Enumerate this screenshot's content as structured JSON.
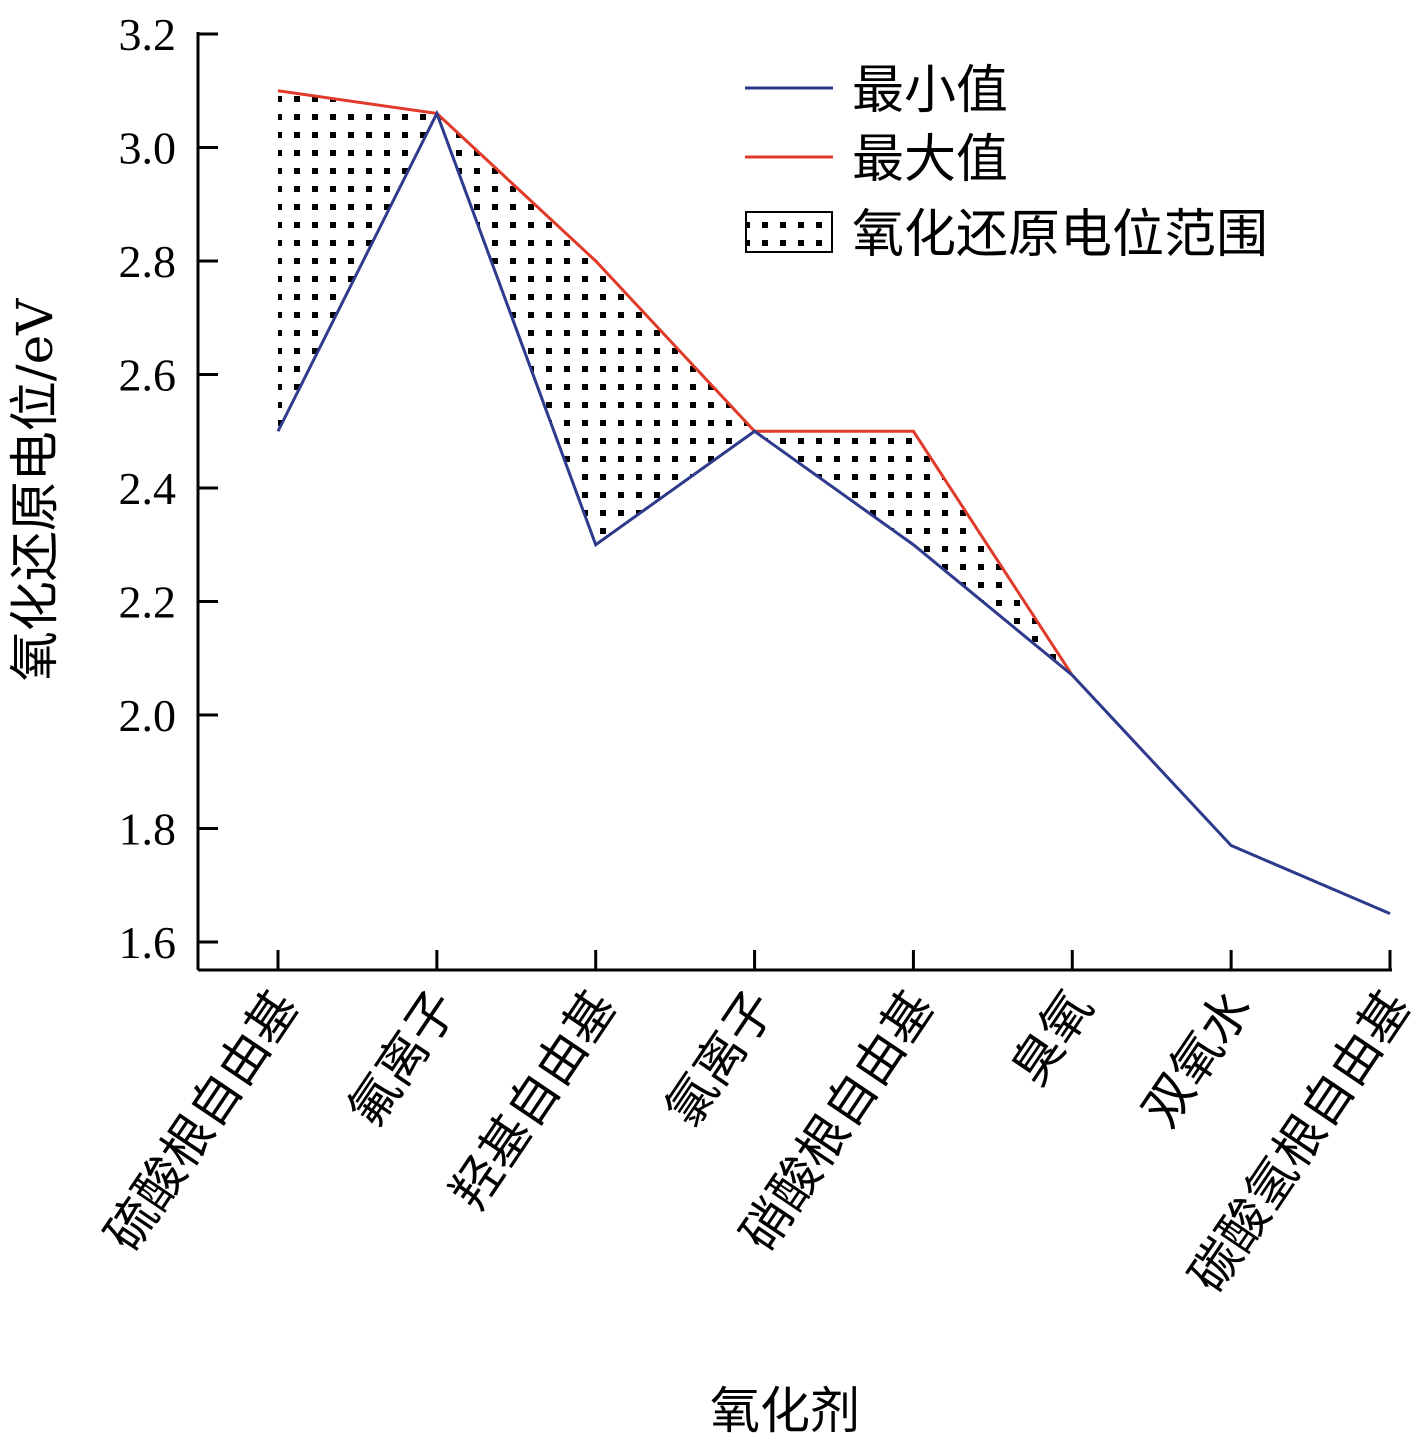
{
  "chart_data": {
    "type": "line",
    "xlabel": "氧化剂",
    "ylabel": "氧化还原电位/eV",
    "ylim": [
      1.6,
      3.2
    ],
    "y_ticks": [
      "1.6",
      "1.8",
      "2.0",
      "2.2",
      "2.4",
      "2.6",
      "2.8",
      "3.0",
      "3.2"
    ],
    "categories": [
      "硫酸根自由基",
      "氟离子",
      "羟基自由基",
      "氯离子",
      "硝酸根自由基",
      "臭氧",
      "双氧水",
      "碳酸氢根自由基"
    ],
    "series": [
      {
        "name": "最小值",
        "color": "#2e3a8c",
        "values": [
          2.5,
          3.06,
          2.3,
          2.5,
          2.3,
          2.07,
          1.77,
          1.65
        ]
      },
      {
        "name": "最大值",
        "color": "#e03a2a",
        "values": [
          3.1,
          3.06,
          2.8,
          2.5,
          2.5,
          2.07,
          null,
          null
        ]
      }
    ],
    "range_area": {
      "name": "氧化还原电位范围",
      "fill": "dotted",
      "between": [
        "最小值",
        "最大值"
      ]
    },
    "legend_position": "top-right",
    "grid": false
  }
}
